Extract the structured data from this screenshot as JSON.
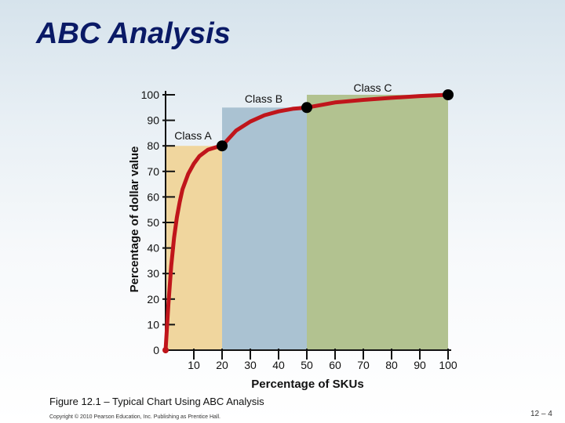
{
  "slide": {
    "title": "ABC Analysis",
    "caption": "Figure 12.1 – Typical Chart Using ABC Analysis",
    "copyright": "Copyright © 2010 Pearson Education, Inc. Publishing as Prentice Hall.",
    "page_number": "12 – 4"
  },
  "chart_data": {
    "type": "area",
    "xlabel": "Percentage of SKUs",
    "ylabel": "Percentage of dollar value",
    "xlim": [
      0,
      100
    ],
    "ylim": [
      0,
      100
    ],
    "x_ticks": [
      10,
      20,
      30,
      40,
      50,
      60,
      70,
      80,
      90,
      100
    ],
    "y_ticks": [
      0,
      10,
      20,
      30,
      40,
      50,
      60,
      70,
      80,
      90,
      100
    ],
    "regions": [
      {
        "name": "Class A",
        "x_range": [
          0,
          20
        ],
        "top": 80,
        "color": "#f0d69e"
      },
      {
        "name": "Class B",
        "x_range": [
          20,
          50
        ],
        "top": 95,
        "color": "#aac2d2"
      },
      {
        "name": "Class C",
        "x_range": [
          50,
          100
        ],
        "top": 100,
        "color": "#b2c290"
      }
    ],
    "curve": {
      "color": "#c0151b",
      "x": [
        0,
        1,
        2,
        3,
        4,
        5,
        6,
        8,
        10,
        12,
        15,
        18,
        20,
        25,
        30,
        35,
        40,
        45,
        50,
        60,
        70,
        80,
        90,
        100
      ],
      "y": [
        0,
        18,
        33,
        44,
        52,
        58,
        63,
        69,
        73,
        76,
        78.5,
        79.5,
        80,
        86,
        89.5,
        92,
        93.5,
        94.5,
        95,
        97,
        98,
        98.8,
        99.5,
        100
      ]
    },
    "markers": [
      {
        "x": 20,
        "y": 80
      },
      {
        "x": 50,
        "y": 95
      },
      {
        "x": 100,
        "y": 100
      }
    ]
  }
}
